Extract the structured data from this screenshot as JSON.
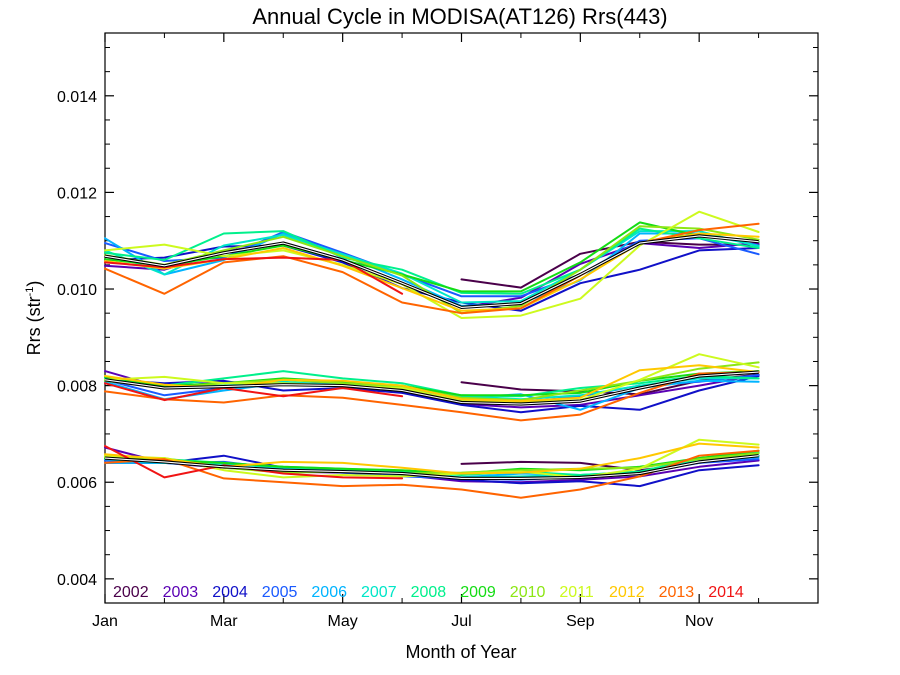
{
  "chart_data": {
    "type": "line",
    "title": "Annual Cycle in MODISA(AT126) Rrs(443)",
    "xlabel": "Month of Year",
    "ylabel": "Rrs (str",
    "ylabel_sup": "-1",
    "ylabel_end": ")",
    "xlim": [
      1,
      13
    ],
    "ylim": [
      0.0035,
      0.0153
    ],
    "xticks": [
      {
        "x": 1,
        "label": "Jan"
      },
      {
        "x": 3,
        "label": "Mar"
      },
      {
        "x": 5,
        "label": "May"
      },
      {
        "x": 7,
        "label": "Jul"
      },
      {
        "x": 9,
        "label": "Sep"
      },
      {
        "x": 11,
        "label": "Nov"
      }
    ],
    "yticks": [
      {
        "y": 0.004,
        "label": "0.004"
      },
      {
        "y": 0.006,
        "label": "0.006"
      },
      {
        "y": 0.008,
        "label": "0.008"
      },
      {
        "y": 0.01,
        "label": "0.010"
      },
      {
        "y": 0.012,
        "label": "0.012"
      },
      {
        "y": 0.014,
        "label": "0.014"
      }
    ],
    "x": [
      1,
      2,
      3,
      4,
      5,
      6,
      7,
      8,
      9,
      10,
      11,
      12
    ],
    "legend": "bottom-left, inside plot",
    "groups": [
      "upper",
      "middle",
      "lower"
    ],
    "series": [
      {
        "name": "2002",
        "color": "#4a004a",
        "upper": [
          null,
          null,
          null,
          null,
          null,
          null,
          0.0102,
          0.01003,
          0.01073,
          0.01098,
          0.01092,
          0.01092
        ],
        "middle": [
          null,
          null,
          null,
          null,
          null,
          null,
          0.00807,
          0.00792,
          0.00788,
          0.00782,
          0.0081,
          0.00823
        ],
        "lower": [
          null,
          null,
          null,
          null,
          null,
          null,
          0.00638,
          0.00642,
          0.0064,
          0.00625,
          0.0064,
          0.00655
        ]
      },
      {
        "name": "2003",
        "color": "#5a00b4",
        "upper": [
          0.01048,
          0.0104,
          0.01078,
          0.01095,
          0.01062,
          0.01012,
          0.00962,
          0.00982,
          0.01052,
          0.01095,
          0.01085,
          0.01095
        ],
        "middle": [
          0.0083,
          0.00795,
          0.00808,
          0.00802,
          0.008,
          0.0079,
          0.00762,
          0.00755,
          0.0076,
          0.0078,
          0.008,
          0.00822
        ],
        "lower": [
          0.00672,
          0.0064,
          0.0063,
          0.00622,
          0.0062,
          0.00615,
          0.00602,
          0.006,
          0.00605,
          0.00612,
          0.00632,
          0.00645
        ]
      },
      {
        "name": "2004",
        "color": "#1010c8",
        "upper": [
          0.0106,
          0.01065,
          0.01088,
          0.0109,
          0.01055,
          0.01002,
          0.00972,
          0.00955,
          0.01012,
          0.0104,
          0.0108,
          0.01085
        ],
        "middle": [
          0.00812,
          0.00805,
          0.0081,
          0.0079,
          0.00795,
          0.00785,
          0.0076,
          0.00745,
          0.00758,
          0.0075,
          0.0079,
          0.0082
        ],
        "lower": [
          0.0064,
          0.0064,
          0.00655,
          0.0063,
          0.00625,
          0.00618,
          0.00605,
          0.00598,
          0.00602,
          0.00592,
          0.00625,
          0.00635
        ]
      },
      {
        "name": "2005",
        "color": "#1a5aff",
        "upper": [
          0.01095,
          0.01058,
          0.01065,
          0.01118,
          0.01075,
          0.0103,
          0.00985,
          0.00985,
          0.0103,
          0.011,
          0.01105,
          0.01072
        ],
        "middle": [
          0.00812,
          0.0078,
          0.00795,
          0.00805,
          0.00805,
          0.0079,
          0.0077,
          0.00765,
          0.00778,
          0.008,
          0.00808,
          0.00822
        ],
        "lower": [
          0.00645,
          0.0064,
          0.00642,
          0.00628,
          0.0062,
          0.00612,
          0.00608,
          0.00605,
          0.00612,
          0.00618,
          0.0064,
          0.00648
        ]
      },
      {
        "name": "2006",
        "color": "#00b4ff",
        "upper": [
          0.01105,
          0.0103,
          0.0106,
          0.01115,
          0.0107,
          0.0102,
          0.00965,
          0.0097,
          0.01018,
          0.01115,
          0.01115,
          0.0109
        ],
        "middle": [
          0.00808,
          0.00772,
          0.0079,
          0.00805,
          0.00802,
          0.00795,
          0.00775,
          0.00782,
          0.0075,
          0.00795,
          0.0081,
          0.00808
        ],
        "lower": [
          0.0064,
          0.0064,
          0.00632,
          0.00625,
          0.00625,
          0.00615,
          0.0061,
          0.00618,
          0.00615,
          0.00622,
          0.00642,
          0.00652
        ]
      },
      {
        "name": "2007",
        "color": "#00e6c8",
        "upper": [
          0.0108,
          0.0103,
          0.0109,
          0.01112,
          0.01072,
          0.01032,
          0.00972,
          0.00975,
          0.0104,
          0.0112,
          0.0112,
          0.01088
        ],
        "middle": [
          0.00815,
          0.00795,
          0.008,
          0.00808,
          0.008,
          0.00795,
          0.00778,
          0.00772,
          0.0078,
          0.008,
          0.00815,
          0.00815
        ],
        "lower": [
          0.00648,
          0.0064,
          0.00638,
          0.0063,
          0.00625,
          0.0062,
          0.0061,
          0.00612,
          0.00615,
          0.0062,
          0.00648,
          0.00655
        ]
      },
      {
        "name": "2008",
        "color": "#00f08c",
        "upper": [
          0.01075,
          0.0106,
          0.01115,
          0.0112,
          0.01065,
          0.0104,
          0.00992,
          0.0099,
          0.0104,
          0.01125,
          0.01105,
          0.01085
        ],
        "middle": [
          0.00818,
          0.008,
          0.00815,
          0.0083,
          0.00815,
          0.00805,
          0.0078,
          0.00778,
          0.00795,
          0.00805,
          0.0082,
          0.00815
        ],
        "lower": [
          0.00652,
          0.00648,
          0.0064,
          0.00632,
          0.00628,
          0.00622,
          0.00615,
          0.00622,
          0.00615,
          0.00622,
          0.0065,
          0.00662
        ]
      },
      {
        "name": "2009",
        "color": "#14dc14",
        "upper": [
          0.01062,
          0.01048,
          0.01068,
          0.0109,
          0.0106,
          0.0103,
          0.00995,
          0.00995,
          0.01055,
          0.01138,
          0.0111,
          0.01098
        ],
        "middle": [
          0.00818,
          0.008,
          0.00805,
          0.00815,
          0.00808,
          0.008,
          0.0078,
          0.0078,
          0.00785,
          0.0081,
          0.00825,
          0.0083
        ],
        "lower": [
          0.0065,
          0.00645,
          0.0064,
          0.00632,
          0.00628,
          0.00625,
          0.00618,
          0.00628,
          0.00625,
          0.00632,
          0.0065,
          0.00665
        ]
      },
      {
        "name": "2010",
        "color": "#8ce614",
        "upper": [
          0.0107,
          0.0105,
          0.0108,
          0.01108,
          0.01068,
          0.01028,
          0.0095,
          0.00965,
          0.0104,
          0.0113,
          0.01125,
          0.01102
        ],
        "middle": [
          0.0081,
          0.00795,
          0.00805,
          0.00812,
          0.00805,
          0.00798,
          0.00775,
          0.0077,
          0.0079,
          0.0081,
          0.00835,
          0.00848
        ],
        "lower": [
          0.00652,
          0.0065,
          0.0063,
          0.0062,
          0.00622,
          0.00618,
          0.0062,
          0.00625,
          0.00628,
          0.0063,
          0.00648,
          0.0066
        ]
      },
      {
        "name": "2011",
        "color": "#cdfa1e",
        "upper": [
          0.0108,
          0.01092,
          0.01068,
          0.0108,
          0.0105,
          0.0101,
          0.0094,
          0.00945,
          0.0098,
          0.0109,
          0.0116,
          0.01118
        ],
        "middle": [
          0.00812,
          0.00818,
          0.00805,
          0.00805,
          0.008,
          0.00795,
          0.00768,
          0.00765,
          0.0077,
          0.00812,
          0.00865,
          0.00838
        ],
        "lower": [
          0.00655,
          0.0065,
          0.00625,
          0.0061,
          0.00615,
          0.00612,
          0.00618,
          0.00622,
          0.0061,
          0.00628,
          0.00688,
          0.00678
        ]
      },
      {
        "name": "2012",
        "color": "#ffc800",
        "upper": [
          0.01058,
          0.01042,
          0.01062,
          0.01085,
          0.01048,
          0.01002,
          0.00955,
          0.0096,
          0.0102,
          0.01095,
          0.01115,
          0.01108
        ],
        "middle": [
          0.0082,
          0.00802,
          0.00795,
          0.00812,
          0.0081,
          0.008,
          0.00772,
          0.00768,
          0.00775,
          0.00832,
          0.00842,
          0.00828
        ],
        "lower": [
          0.00658,
          0.00648,
          0.00632,
          0.00642,
          0.0064,
          0.0063,
          0.00618,
          0.0062,
          0.00628,
          0.0065,
          0.0068,
          0.00672
        ]
      },
      {
        "name": "2013",
        "color": "#ff6400",
        "upper": [
          0.01042,
          0.0099,
          0.01055,
          0.01068,
          0.01035,
          0.00972,
          0.0095,
          0.0096,
          0.01028,
          0.01095,
          0.01122,
          0.01135
        ],
        "middle": [
          0.00788,
          0.00772,
          0.00765,
          0.0078,
          0.00775,
          0.0076,
          0.00745,
          0.00728,
          0.0074,
          0.00785,
          0.00825,
          0.00828
        ],
        "lower": [
          0.0064,
          0.00648,
          0.00608,
          0.006,
          0.00592,
          0.00595,
          0.00585,
          0.00568,
          0.00585,
          0.00612,
          0.00655,
          0.00665
        ]
      },
      {
        "name": "2014",
        "color": "#f01414",
        "upper": [
          0.01055,
          0.01045,
          0.01062,
          0.01065,
          0.0106,
          0.0099,
          null,
          null,
          null,
          null,
          null,
          null
        ],
        "middle": [
          0.00805,
          0.0077,
          0.00795,
          0.00778,
          0.00795,
          0.00778,
          null,
          null,
          null,
          null,
          null,
          null
        ],
        "lower": [
          0.00675,
          0.0061,
          0.00635,
          0.00618,
          0.0061,
          0.00608,
          null,
          null,
          null,
          null,
          null,
          null
        ]
      }
    ],
    "mean": {
      "color": "#000000",
      "upper": [
        0.01068,
        0.01048,
        0.01075,
        0.01095,
        0.0106,
        0.01012,
        0.00962,
        0.0097,
        0.0103,
        0.01095,
        0.0111,
        0.01098
      ],
      "middle": [
        0.00812,
        0.00795,
        0.00798,
        0.00802,
        0.008,
        0.0079,
        0.00765,
        0.00762,
        0.00768,
        0.00795,
        0.0082,
        0.00828
      ],
      "lower": [
        0.0065,
        0.00642,
        0.00632,
        0.00625,
        0.00622,
        0.00618,
        0.00608,
        0.00608,
        0.0061,
        0.00618,
        0.00642,
        0.00655
      ]
    }
  }
}
